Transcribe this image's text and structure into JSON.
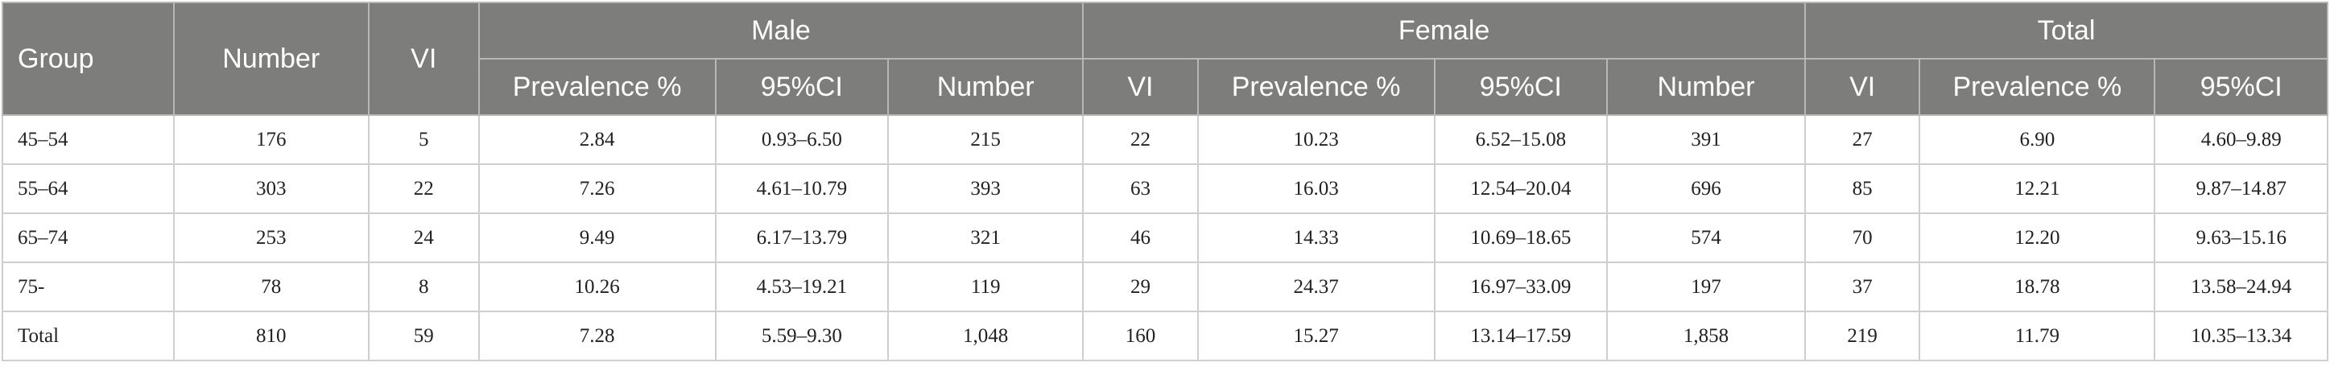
{
  "table": {
    "group_headers": {
      "group": "Group",
      "male": "Male",
      "female": "Female",
      "total": "Total"
    },
    "column_headers": {
      "male_number": "Number",
      "male_vi": "VI",
      "male_prevalence": "Prevalence %",
      "male_ci": "95%CI",
      "female_number": "Number",
      "female_vi": "VI",
      "female_prevalence": "Prevalence %",
      "female_ci": "95%CI",
      "total_number": "Number",
      "total_vi": "VI",
      "total_prevalence": "Prevalence %",
      "total_ci": "95%CI"
    },
    "rows": [
      [
        "45–54",
        "176",
        "5",
        "2.84",
        "0.93–6.50",
        "215",
        "22",
        "10.23",
        "6.52–15.08",
        "391",
        "27",
        "6.90",
        "4.60–9.89"
      ],
      [
        "55–64",
        "303",
        "22",
        "7.26",
        "4.61–10.79",
        "393",
        "63",
        "16.03",
        "12.54–20.04",
        "696",
        "85",
        "12.21",
        "9.87–14.87"
      ],
      [
        "65–74",
        "253",
        "24",
        "9.49",
        "6.17–13.79",
        "321",
        "46",
        "14.33",
        "10.69–18.65",
        "574",
        "70",
        "12.20",
        "9.63–15.16"
      ],
      [
        "75-",
        "78",
        "8",
        "10.26",
        "4.53–19.21",
        "119",
        "29",
        "24.37",
        "16.97–33.09",
        "197",
        "37",
        "18.78",
        "13.58–24.94"
      ],
      [
        "Total",
        "810",
        "59",
        "7.28",
        "5.59–9.30",
        "1,048",
        "160",
        "15.27",
        "13.14–17.59",
        "1,858",
        "219",
        "11.79",
        "10.35–13.34"
      ]
    ]
  }
}
